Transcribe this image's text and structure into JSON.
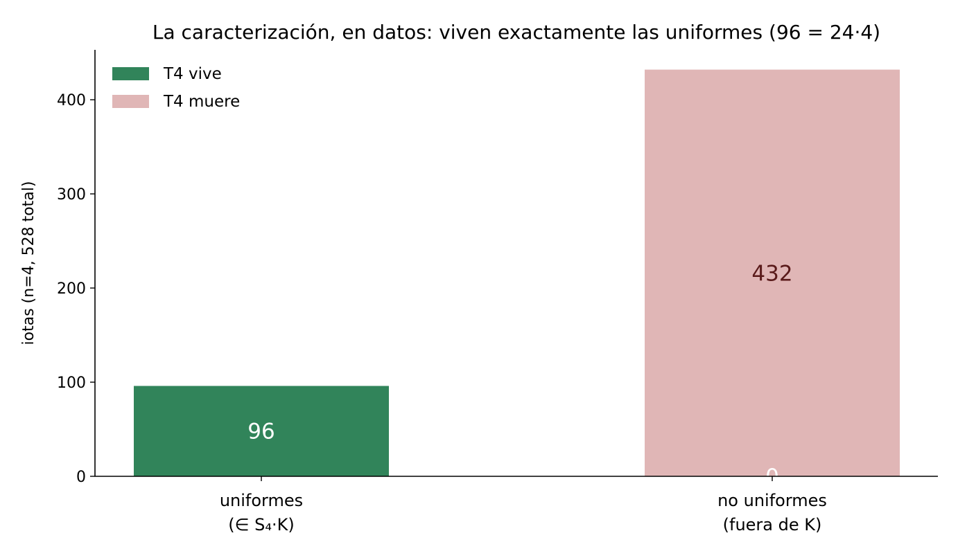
{
  "chart_data": {
    "type": "bar",
    "title": "La caracterización, en datos: viven exactamente las uniformes (96 = 24·4)",
    "xlabel": "",
    "ylabel": "iotas (n=4, 528 total)",
    "categories": [
      [
        "uniformes",
        "(∈ S₄·K)"
      ],
      [
        "no uniformes",
        "(fuera de K)"
      ]
    ],
    "stacked": true,
    "series": [
      {
        "name": "T4 vive",
        "color": "#31845a",
        "label_color": "#ffffff",
        "values": [
          96,
          0
        ]
      },
      {
        "name": "T4 muere",
        "color": "#e0b6b6",
        "label_color": "#5a1a1a",
        "values": [
          0,
          432
        ]
      }
    ],
    "ylim": [
      0,
      453
    ],
    "yticks": [
      0,
      100,
      200,
      300,
      400
    ],
    "grid": false,
    "legend": "top-left"
  }
}
